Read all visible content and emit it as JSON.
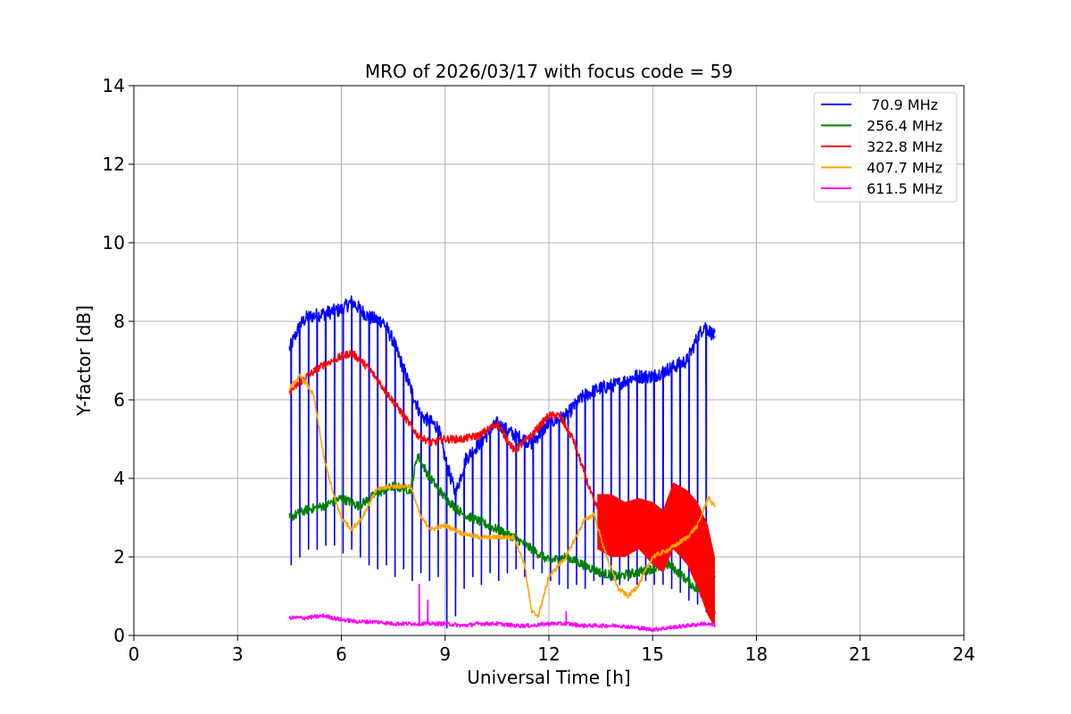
{
  "chart_data": {
    "type": "line",
    "title": "MRO of 2026/03/17 with focus code = 59",
    "xlabel": "Universal Time [h]",
    "ylabel": "Y-factor [dB]",
    "xlim": [
      0,
      24
    ],
    "ylim": [
      0,
      14
    ],
    "xticks": [
      0,
      3,
      6,
      9,
      12,
      15,
      18,
      21,
      24
    ],
    "yticks": [
      0,
      2,
      4,
      6,
      8,
      10,
      12,
      14
    ],
    "grid": true,
    "legend_position": "top-right",
    "series": [
      {
        "name": " 70.9 MHz",
        "color": "#0000ff",
        "x": [
          4.5,
          4.8,
          5.0,
          5.5,
          6.0,
          6.3,
          6.8,
          7.2,
          7.5,
          8.0,
          8.3,
          8.8,
          9.0,
          9.3,
          9.6,
          10.0,
          10.5,
          11.0,
          11.5,
          12.0,
          12.5,
          13.0,
          13.5,
          14.0,
          14.5,
          15.0,
          15.5,
          16.0,
          16.3,
          16.5,
          16.8
        ],
        "y": [
          7.3,
          7.9,
          8.1,
          8.2,
          8.3,
          8.5,
          8.1,
          8.0,
          7.5,
          6.3,
          5.6,
          5.3,
          4.5,
          3.6,
          4.5,
          4.9,
          5.4,
          5.1,
          4.9,
          5.4,
          5.6,
          6.1,
          6.3,
          6.4,
          6.6,
          6.6,
          6.8,
          7.0,
          7.6,
          7.9,
          7.6
        ],
        "dips": [
          [
            4.55,
            1.8
          ],
          [
            4.8,
            2.0
          ],
          [
            5.05,
            2.2
          ],
          [
            5.3,
            2.2
          ],
          [
            5.55,
            2.3
          ],
          [
            5.8,
            2.3
          ],
          [
            6.05,
            2.1
          ],
          [
            6.3,
            2.2
          ],
          [
            6.55,
            2.0
          ],
          [
            6.8,
            1.8
          ],
          [
            7.05,
            1.7
          ],
          [
            7.3,
            1.8
          ],
          [
            7.55,
            1.5
          ],
          [
            7.8,
            1.7
          ],
          [
            8.05,
            1.4
          ],
          [
            8.3,
            1.6
          ],
          [
            8.55,
            1.4
          ],
          [
            8.8,
            1.5
          ],
          [
            9.05,
            0.2
          ],
          [
            9.3,
            0.5
          ],
          [
            9.55,
            1.2
          ],
          [
            9.8,
            1.5
          ],
          [
            10.05,
            1.3
          ],
          [
            10.3,
            1.6
          ],
          [
            10.55,
            1.4
          ],
          [
            10.8,
            1.6
          ],
          [
            11.05,
            1.7
          ],
          [
            11.3,
            1.5
          ],
          [
            11.55,
            1.7
          ],
          [
            11.8,
            1.6
          ],
          [
            12.05,
            1.4
          ],
          [
            12.3,
            1.3
          ],
          [
            12.55,
            1.2
          ],
          [
            12.8,
            1.3
          ],
          [
            13.05,
            1.2
          ],
          [
            13.3,
            1.4
          ],
          [
            13.55,
            1.3
          ],
          [
            13.8,
            1.4
          ],
          [
            14.05,
            1.3
          ],
          [
            14.3,
            1.4
          ],
          [
            14.55,
            1.3
          ],
          [
            14.8,
            1.4
          ],
          [
            15.05,
            1.3
          ],
          [
            15.3,
            1.3
          ],
          [
            15.55,
            1.2
          ],
          [
            15.8,
            1.1
          ],
          [
            16.05,
            0.9
          ],
          [
            16.3,
            0.8
          ],
          [
            16.55,
            0.6
          ]
        ]
      },
      {
        "name": "256.4 MHz",
        "color": "#008000",
        "x": [
          4.5,
          5.0,
          5.5,
          6.0,
          6.5,
          7.0,
          7.5,
          8.0,
          8.2,
          8.5,
          9.0,
          9.5,
          10.0,
          10.5,
          11.0,
          11.5,
          12.0,
          12.5,
          13.0,
          13.5,
          14.0,
          14.5,
          15.0,
          15.5,
          16.0,
          16.5,
          16.8
        ],
        "y": [
          3.0,
          3.2,
          3.3,
          3.5,
          3.3,
          3.6,
          3.8,
          3.7,
          4.6,
          4.1,
          3.5,
          3.1,
          2.9,
          2.7,
          2.5,
          2.2,
          1.9,
          2.0,
          1.8,
          1.6,
          1.5,
          1.6,
          1.7,
          1.8,
          1.4,
          1.0,
          0.6
        ]
      },
      {
        "name": "322.8 MHz",
        "color": "#ff0000",
        "x": [
          4.5,
          5.0,
          5.5,
          6.0,
          6.3,
          6.8,
          7.3,
          7.8,
          8.2,
          8.6,
          9.0,
          9.5,
          10.0,
          10.5,
          11.0,
          11.5,
          12.0,
          12.3,
          12.7,
          13.0,
          13.3,
          13.6,
          14.0,
          14.5,
          15.0,
          15.3,
          15.6,
          16.0,
          16.3,
          16.6,
          16.8
        ],
        "y": [
          6.2,
          6.6,
          6.9,
          7.1,
          7.2,
          6.8,
          6.2,
          5.6,
          5.1,
          4.9,
          5.0,
          5.0,
          5.1,
          5.4,
          4.7,
          5.1,
          5.6,
          5.6,
          5.0,
          4.2,
          3.4,
          3.0,
          2.9,
          2.8,
          2.9,
          2.5,
          3.0,
          3.0,
          2.6,
          2.0,
          1.5
        ],
        "band": [
          [
            13.4,
            2.2,
            3.6
          ],
          [
            13.8,
            2.0,
            3.6
          ],
          [
            14.2,
            2.0,
            3.4
          ],
          [
            14.6,
            2.2,
            3.5
          ],
          [
            15.0,
            1.8,
            3.4
          ],
          [
            15.3,
            1.6,
            3.2
          ],
          [
            15.6,
            2.2,
            3.9
          ],
          [
            16.0,
            1.8,
            3.7
          ],
          [
            16.3,
            1.2,
            3.4
          ],
          [
            16.6,
            0.5,
            2.8
          ],
          [
            16.8,
            0.2,
            2.0
          ]
        ]
      },
      {
        "name": "407.7 MHz",
        "color": "#ffa500",
        "x": [
          4.5,
          4.8,
          5.0,
          5.2,
          5.5,
          5.8,
          6.0,
          6.3,
          6.6,
          7.0,
          7.5,
          8.0,
          8.3,
          8.6,
          9.0,
          9.5,
          10.0,
          10.5,
          11.0,
          11.3,
          11.5,
          11.7,
          12.0,
          12.5,
          13.0,
          13.3,
          13.6,
          14.0,
          14.3,
          14.6,
          15.0,
          15.5,
          16.0,
          16.3,
          16.6,
          16.8
        ],
        "y": [
          6.3,
          6.6,
          6.4,
          6.1,
          4.5,
          3.5,
          3.0,
          2.7,
          3.0,
          3.7,
          3.8,
          3.8,
          3.0,
          2.7,
          2.8,
          2.6,
          2.5,
          2.5,
          2.5,
          1.8,
          0.6,
          0.5,
          1.5,
          2.0,
          2.9,
          3.1,
          2.2,
          1.2,
          1.0,
          1.3,
          2.0,
          2.2,
          2.5,
          2.8,
          3.5,
          3.3
        ]
      },
      {
        "name": "611.5 MHz",
        "color": "#ff00ff",
        "x": [
          4.5,
          5.0,
          5.5,
          6.0,
          6.5,
          7.0,
          7.5,
          8.0,
          8.5,
          9.0,
          9.5,
          10.0,
          10.5,
          11.0,
          11.5,
          12.0,
          12.5,
          13.0,
          13.5,
          14.0,
          14.5,
          15.0,
          15.5,
          16.0,
          16.5,
          16.8
        ],
        "y": [
          0.45,
          0.45,
          0.5,
          0.4,
          0.35,
          0.35,
          0.3,
          0.3,
          0.3,
          0.3,
          0.25,
          0.3,
          0.3,
          0.25,
          0.25,
          0.3,
          0.3,
          0.25,
          0.25,
          0.25,
          0.2,
          0.15,
          0.2,
          0.25,
          0.3,
          0.25
        ],
        "spikes": [
          [
            8.25,
            1.3
          ],
          [
            8.5,
            0.9
          ],
          [
            12.5,
            0.6
          ]
        ]
      }
    ]
  }
}
